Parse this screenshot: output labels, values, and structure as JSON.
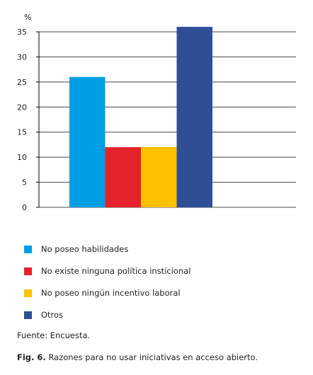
{
  "chart_data": {
    "type": "bar",
    "unit_label": "%",
    "yticks": [
      0,
      5,
      10,
      15,
      20,
      25,
      30,
      35
    ],
    "ylim": [
      0,
      35
    ],
    "grid": true,
    "legend_position": "bottom",
    "series": [
      {
        "name": "No poseo habilidades",
        "value": 26,
        "color": "#009fe3"
      },
      {
        "name": "No existe ninguna política insticional",
        "value": 12,
        "color": "#e3222b"
      },
      {
        "name": "No poseo ningún incentivo laboral",
        "value": 12,
        "color": "#ffc000"
      },
      {
        "name": "Otros",
        "value": 36,
        "color": "#2e4f95"
      }
    ]
  },
  "source": "Fuente: Encuesta.",
  "caption": {
    "label": "Fig. 6.",
    "text": "Razones para no usar iniciativas en acceso abierto."
  }
}
